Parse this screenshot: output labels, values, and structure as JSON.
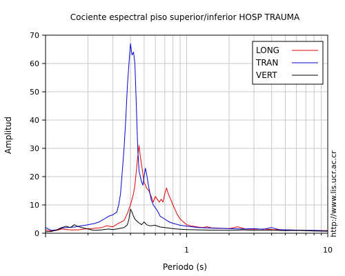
{
  "chart_data": {
    "type": "line",
    "title": "Cociente espectral piso superior/inferior  HOSP TRAUMA",
    "xlabel": "Periodo (s)",
    "ylabel": "Amplitud",
    "x_scale": "log",
    "xlim": [
      0.1,
      10
    ],
    "ylim": [
      0,
      70
    ],
    "grid": true,
    "legend_position": "top-right",
    "side_text": "http://www.lis.ucr.ac.cr",
    "x_tick_labels": [
      {
        "value": 1,
        "label": "1"
      },
      {
        "value": 10,
        "label": "10"
      }
    ],
    "y_ticks": [
      0,
      10,
      20,
      30,
      40,
      50,
      60,
      70
    ],
    "series": [
      {
        "name": "LONG",
        "color": "#e00000",
        "points": [
          [
            0.1,
            1.2
          ],
          [
            0.11,
            0.8
          ],
          [
            0.12,
            1.0
          ],
          [
            0.13,
            1.5
          ],
          [
            0.15,
            1.2
          ],
          [
            0.17,
            1.2
          ],
          [
            0.19,
            1.5
          ],
          [
            0.21,
            1.6
          ],
          [
            0.23,
            1.8
          ],
          [
            0.25,
            2.0
          ],
          [
            0.27,
            2.6
          ],
          [
            0.3,
            2.3
          ],
          [
            0.33,
            3.5
          ],
          [
            0.36,
            4.5
          ],
          [
            0.38,
            7
          ],
          [
            0.4,
            10
          ],
          [
            0.42,
            14
          ],
          [
            0.43,
            17
          ],
          [
            0.44,
            22
          ],
          [
            0.45,
            27
          ],
          [
            0.46,
            31
          ],
          [
            0.47,
            27
          ],
          [
            0.48,
            24
          ],
          [
            0.5,
            18
          ],
          [
            0.52,
            16
          ],
          [
            0.54,
            15
          ],
          [
            0.56,
            13
          ],
          [
            0.58,
            11
          ],
          [
            0.6,
            13
          ],
          [
            0.62,
            12
          ],
          [
            0.64,
            11
          ],
          [
            0.66,
            12
          ],
          [
            0.68,
            11
          ],
          [
            0.7,
            14
          ],
          [
            0.72,
            16
          ],
          [
            0.74,
            14
          ],
          [
            0.77,
            12
          ],
          [
            0.8,
            10
          ],
          [
            0.85,
            7
          ],
          [
            0.9,
            5
          ],
          [
            0.95,
            4
          ],
          [
            1.0,
            3
          ],
          [
            1.1,
            2.5
          ],
          [
            1.2,
            2.2
          ],
          [
            1.3,
            2.0
          ],
          [
            1.4,
            2.3
          ],
          [
            1.5,
            1.9
          ],
          [
            1.7,
            1.8
          ],
          [
            2.0,
            1.6
          ],
          [
            2.3,
            2.3
          ],
          [
            2.6,
            1.5
          ],
          [
            3.0,
            1.4
          ],
          [
            3.5,
            1.5
          ],
          [
            4.0,
            1.3
          ],
          [
            5.0,
            1.2
          ],
          [
            6.0,
            1.1
          ],
          [
            7.0,
            1.0
          ],
          [
            8.0,
            1.0
          ],
          [
            10.0,
            0.9
          ]
        ]
      },
      {
        "name": "TRAN",
        "color": "#0000d0",
        "points": [
          [
            0.1,
            2.0
          ],
          [
            0.11,
            1.0
          ],
          [
            0.12,
            1.2
          ],
          [
            0.13,
            1.8
          ],
          [
            0.14,
            2.0
          ],
          [
            0.16,
            2.2
          ],
          [
            0.18,
            2.6
          ],
          [
            0.2,
            3.0
          ],
          [
            0.22,
            3.4
          ],
          [
            0.24,
            4.0
          ],
          [
            0.26,
            5.0
          ],
          [
            0.28,
            6.0
          ],
          [
            0.3,
            6.5
          ],
          [
            0.32,
            7.5
          ],
          [
            0.33,
            10
          ],
          [
            0.34,
            14
          ],
          [
            0.35,
            22
          ],
          [
            0.36,
            30
          ],
          [
            0.37,
            40
          ],
          [
            0.38,
            52
          ],
          [
            0.39,
            60
          ],
          [
            0.4,
            67
          ],
          [
            0.41,
            63
          ],
          [
            0.42,
            64
          ],
          [
            0.43,
            60
          ],
          [
            0.44,
            45
          ],
          [
            0.45,
            30
          ],
          [
            0.46,
            22
          ],
          [
            0.47,
            20
          ],
          [
            0.48,
            18
          ],
          [
            0.49,
            17
          ],
          [
            0.5,
            20
          ],
          [
            0.51,
            23
          ],
          [
            0.52,
            21
          ],
          [
            0.54,
            16
          ],
          [
            0.56,
            12
          ],
          [
            0.58,
            10
          ],
          [
            0.6,
            9
          ],
          [
            0.62,
            8
          ],
          [
            0.65,
            6
          ],
          [
            0.7,
            5
          ],
          [
            0.75,
            4
          ],
          [
            0.8,
            3.5
          ],
          [
            0.9,
            2.8
          ],
          [
            1.0,
            2.5
          ],
          [
            1.2,
            2.0
          ],
          [
            1.5,
            1.8
          ],
          [
            2.0,
            1.6
          ],
          [
            2.5,
            1.5
          ],
          [
            3.0,
            1.6
          ],
          [
            3.5,
            1.4
          ],
          [
            4.0,
            2.0
          ],
          [
            4.5,
            1.3
          ],
          [
            5.0,
            1.2
          ],
          [
            6.0,
            1.1
          ],
          [
            7.0,
            1.0
          ],
          [
            8.0,
            1.0
          ],
          [
            10.0,
            0.8
          ]
        ]
      },
      {
        "name": "VERT",
        "color": "#000000",
        "points": [
          [
            0.1,
            0.5
          ],
          [
            0.11,
            0.6
          ],
          [
            0.12,
            1.2
          ],
          [
            0.13,
            2.0
          ],
          [
            0.14,
            2.5
          ],
          [
            0.15,
            2.0
          ],
          [
            0.16,
            3.0
          ],
          [
            0.17,
            2.4
          ],
          [
            0.18,
            2.0
          ],
          [
            0.2,
            1.5
          ],
          [
            0.22,
            1.0
          ],
          [
            0.25,
            1.2
          ],
          [
            0.28,
            1.5
          ],
          [
            0.3,
            1.3
          ],
          [
            0.33,
            1.6
          ],
          [
            0.36,
            2.0
          ],
          [
            0.38,
            3.0
          ],
          [
            0.39,
            5.0
          ],
          [
            0.4,
            8.5
          ],
          [
            0.41,
            7.5
          ],
          [
            0.42,
            6.0
          ],
          [
            0.43,
            5.0
          ],
          [
            0.45,
            4.0
          ],
          [
            0.48,
            3.0
          ],
          [
            0.5,
            4.0
          ],
          [
            0.52,
            3.0
          ],
          [
            0.55,
            2.6
          ],
          [
            0.6,
            2.8
          ],
          [
            0.65,
            2.2
          ],
          [
            0.7,
            2.0
          ],
          [
            0.75,
            1.8
          ],
          [
            0.8,
            1.6
          ],
          [
            0.9,
            1.4
          ],
          [
            1.0,
            1.3
          ],
          [
            1.2,
            1.2
          ],
          [
            1.5,
            1.1
          ],
          [
            2.0,
            1.0
          ],
          [
            2.5,
            1.2
          ],
          [
            3.0,
            1.0
          ],
          [
            4.0,
            1.1
          ],
          [
            5.0,
            0.9
          ],
          [
            6.0,
            1.0
          ],
          [
            8.0,
            0.8
          ],
          [
            10.0,
            0.7
          ]
        ]
      }
    ]
  }
}
